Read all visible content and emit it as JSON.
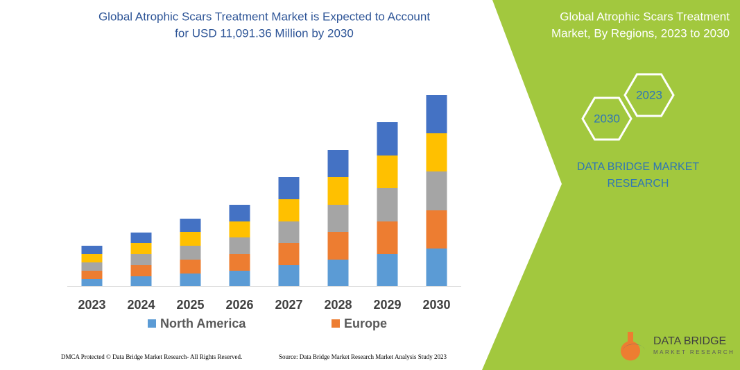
{
  "chart_data": {
    "type": "stacked-bar",
    "title": [
      "Global Atrophic Scars Treatment Market is Expected to Account",
      "for USD 11,091.36 Million by 2030"
    ],
    "categories": [
      "2023",
      "2024",
      "2025",
      "2026",
      "2027",
      "2028",
      "2029",
      "2030"
    ],
    "series": [
      {
        "name": "North America",
        "color": "#5b9bd5",
        "values": [
          10,
          14,
          18,
          22,
          30,
          38,
          46,
          54
        ]
      },
      {
        "name": "Europe",
        "color": "#ed7d31",
        "values": [
          12,
          16,
          20,
          24,
          32,
          40,
          47,
          55
        ]
      },
      {
        "color": "#a5a5a5",
        "values": [
          12,
          16,
          20,
          24,
          31,
          39,
          48,
          56
        ]
      },
      {
        "color": "#ffc000",
        "values": [
          12,
          16,
          20,
          23,
          32,
          40,
          47,
          55
        ]
      },
      {
        "color": "#4472c4",
        "values": [
          12,
          15,
          19,
          24,
          32,
          39,
          48,
          55
        ]
      }
    ],
    "ylim": [
      0,
      280
    ]
  },
  "panel": {
    "title": [
      "Global Atrophic Scars Treatment",
      "Market, By Regions, 2023 to 2030"
    ],
    "hexagons": [
      "2023",
      "2030"
    ],
    "brand": [
      "DATA BRIDGE MARKET",
      "RESEARCH"
    ]
  },
  "footer": {
    "copyright": "DMCA Protected © Data Bridge Market Research-  All Rights Reserved.",
    "source": "Source: Data Bridge Market Research  Market Analysis Study 2023"
  },
  "logo": {
    "name": "DATA BRIDGE",
    "tagline": "MARKET RESEARCH"
  }
}
